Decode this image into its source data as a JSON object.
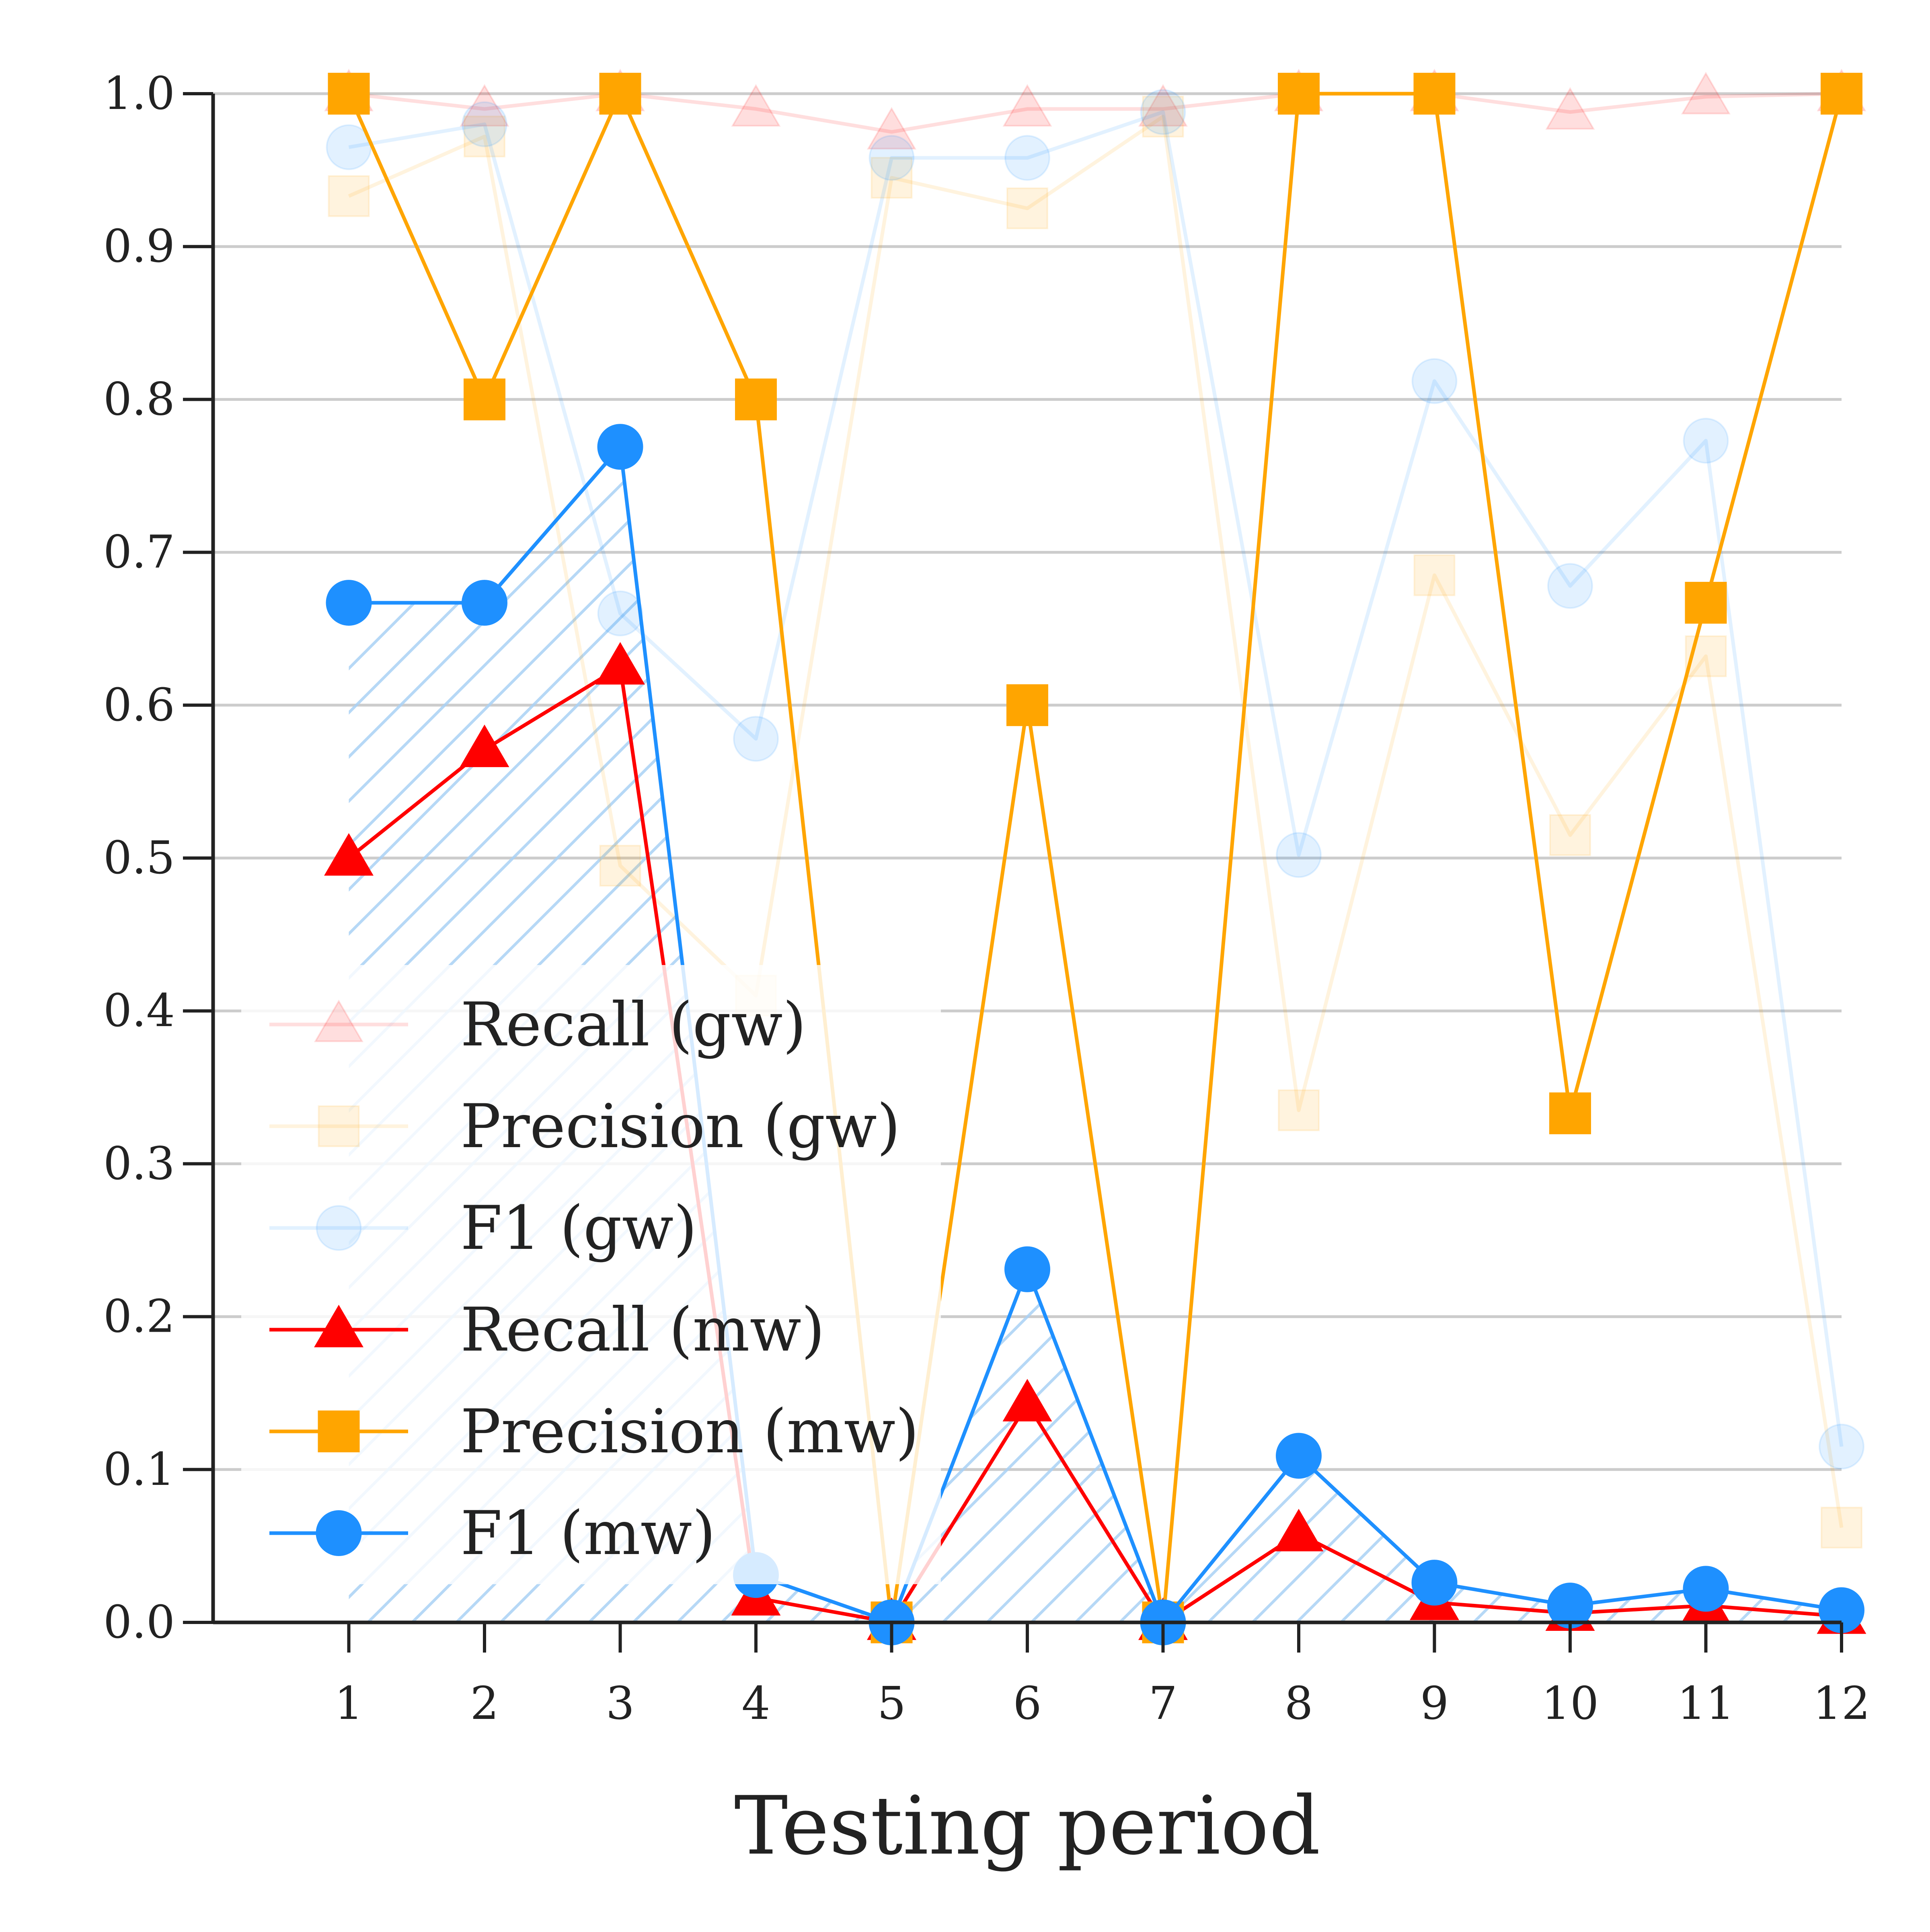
{
  "chart_data": {
    "type": "line",
    "xlabel": "Testing period",
    "ylabel": "",
    "x": [
      1,
      2,
      3,
      4,
      5,
      6,
      7,
      8,
      9,
      10,
      11,
      12
    ],
    "x_ticks": [
      "1",
      "2",
      "3",
      "4",
      "5",
      "6",
      "7",
      "8",
      "9",
      "10",
      "11",
      "12"
    ],
    "xlim": [
      0,
      12
    ],
    "ylim": [
      0.0,
      1.0
    ],
    "y_ticks": [
      "0.0",
      "0.1",
      "0.2",
      "0.3",
      "0.4",
      "0.5",
      "0.6",
      "0.7",
      "0.8",
      "0.9",
      "1.0"
    ],
    "grid": "horizontal",
    "legend_position": "lower-left",
    "series": [
      {
        "name": "Recall (gw)",
        "key": "recall-gw",
        "color": "#ff0000",
        "marker": "triangle",
        "faded": true,
        "values": [
          1.0,
          0.99,
          1.0,
          0.99,
          0.975,
          0.99,
          0.99,
          1.0,
          1.0,
          0.988,
          0.998,
          1.0
        ]
      },
      {
        "name": "Precision (gw)",
        "key": "precision-gw",
        "color": "#ffa500",
        "marker": "square",
        "faded": true,
        "values": [
          0.933,
          0.972,
          0.495,
          0.41,
          0.945,
          0.925,
          0.985,
          0.335,
          0.685,
          0.515,
          0.632,
          0.062
        ]
      },
      {
        "name": "F1 (gw)",
        "key": "f1-gw",
        "color": "#1e90ff",
        "marker": "circle",
        "faded": true,
        "values": [
          0.965,
          0.98,
          0.66,
          0.578,
          0.958,
          0.958,
          0.988,
          0.502,
          0.812,
          0.678,
          0.773,
          0.115
        ]
      },
      {
        "name": "Recall (mw)",
        "key": "recall-mw",
        "color": "#ff0000",
        "marker": "triangle",
        "faded": false,
        "values": [
          0.5,
          0.571,
          0.625,
          0.016,
          0.0,
          0.143,
          0.0,
          0.058,
          0.013,
          0.006,
          0.011,
          0.004
        ]
      },
      {
        "name": "Precision (mw)",
        "key": "precision-mw",
        "color": "#ffa500",
        "marker": "square",
        "faded": false,
        "values": [
          1.0,
          0.8,
          1.0,
          0.8,
          0.0,
          0.6,
          0.0,
          1.0,
          1.0,
          0.333,
          0.667,
          1.0
        ]
      },
      {
        "name": "F1 (mw)",
        "key": "f1-mw",
        "color": "#1e90ff",
        "marker": "circle",
        "faded": false,
        "values": [
          0.667,
          0.667,
          0.769,
          0.031,
          0.0,
          0.231,
          0.0,
          0.109,
          0.026,
          0.011,
          0.022,
          0.008
        ]
      }
    ],
    "hatched_area_under": "F1 (mw)"
  }
}
